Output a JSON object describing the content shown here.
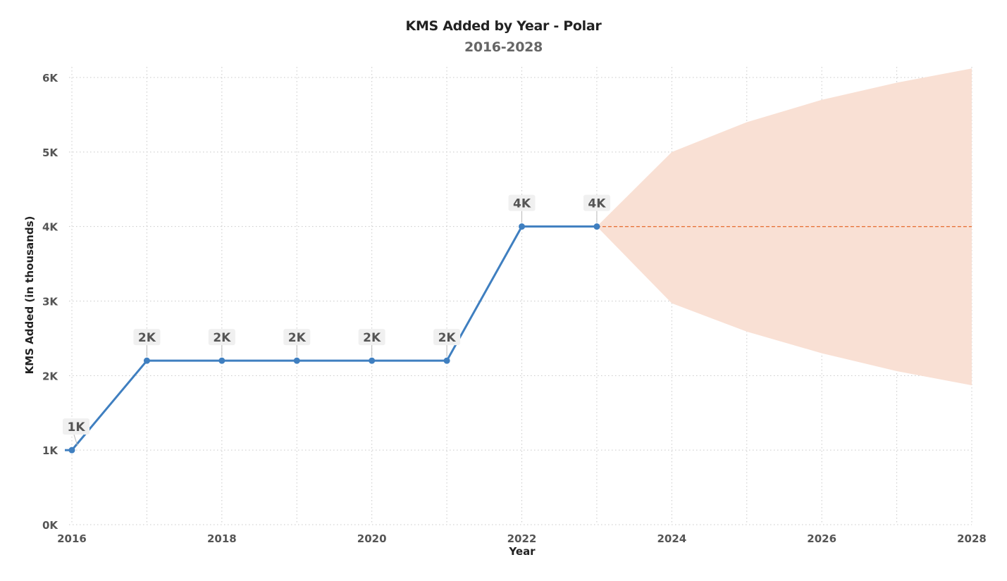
{
  "chart_data": {
    "type": "line",
    "title": "KMS Added by Year - Polar",
    "subtitle": "2016-2028",
    "xlabel": "Year",
    "ylabel": "KMS Added (in thousands)",
    "xlim": [
      2016,
      2028
    ],
    "ylim": [
      0,
      6000
    ],
    "x_ticks": [
      "2016",
      "2018",
      "2020",
      "2022",
      "2024",
      "2026",
      "2028"
    ],
    "y_ticks": [
      "0K",
      "1K",
      "2K",
      "3K",
      "4K",
      "5K",
      "6K"
    ],
    "grid": true,
    "series": [
      {
        "kind": "actual",
        "x": [
          2016,
          2017,
          2018,
          2019,
          2020,
          2021,
          2022,
          2023
        ],
        "values": [
          1000,
          2200,
          2200,
          2200,
          2200,
          2200,
          4000,
          4000
        ],
        "labels": [
          "1K",
          "2K",
          "2K",
          "2K",
          "2K",
          "2K",
          "4K",
          "4K"
        ],
        "color": "#3f7fc0"
      },
      {
        "kind": "forecast",
        "x": [
          2023,
          2024,
          2025,
          2026,
          2027,
          2028
        ],
        "values": [
          4000,
          4000,
          4000,
          4000,
          4000,
          4000
        ],
        "color": "#e8743b"
      }
    ],
    "confidence_band": {
      "x": [
        2023,
        2024,
        2025,
        2026,
        2027,
        2028
      ],
      "upper": [
        4000,
        5000,
        5400,
        5700,
        5930,
        6120
      ],
      "lower": [
        4000,
        2970,
        2590,
        2300,
        2060,
        1870
      ],
      "color": "#f9e0d4"
    }
  }
}
